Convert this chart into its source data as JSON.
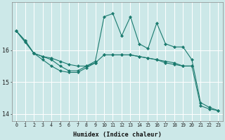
{
  "xlabel": "Humidex (Indice chaleur)",
  "x": [
    0,
    1,
    2,
    3,
    4,
    5,
    6,
    7,
    8,
    9,
    10,
    11,
    12,
    13,
    14,
    15,
    16,
    17,
    18,
    19,
    20,
    21,
    22,
    23
  ],
  "line_top": [
    16.6,
    16.3,
    15.9,
    null,
    null,
    null,
    null,
    null,
    null,
    null,
    null,
    null,
    null,
    null,
    null,
    null,
    null,
    null,
    null,
    null,
    null,
    null,
    null,
    null
  ],
  "line_mid_flat": [
    16.6,
    16.25,
    15.9,
    15.8,
    15.75,
    15.65,
    15.55,
    15.5,
    15.5,
    15.6,
    15.85,
    15.85,
    15.85,
    15.85,
    15.8,
    15.75,
    15.7,
    15.65,
    15.6,
    15.5,
    15.5,
    null,
    null,
    null
  ],
  "line_zigzag": [
    16.6,
    16.3,
    15.9,
    15.8,
    15.7,
    15.5,
    15.35,
    15.35,
    15.5,
    15.65,
    17.05,
    17.15,
    16.45,
    17.05,
    16.2,
    16.05,
    16.85,
    16.2,
    16.1,
    16.1,
    15.7,
    14.35,
    14.2,
    14.1
  ],
  "line_bottom": [
    null,
    null,
    15.9,
    15.7,
    15.5,
    15.35,
    15.3,
    15.3,
    15.45,
    15.6,
    null,
    null,
    null,
    null,
    null,
    null,
    null,
    null,
    null,
    null,
    null,
    null,
    null,
    null
  ],
  "line_long_decline": [
    null,
    null,
    null,
    null,
    null,
    null,
    null,
    null,
    null,
    null,
    15.85,
    15.85,
    15.85,
    15.85,
    15.8,
    15.75,
    15.7,
    15.6,
    15.55,
    15.5,
    15.5,
    14.25,
    14.15,
    14.1
  ],
  "ylim": [
    13.78,
    17.5
  ],
  "yticks": [
    14,
    15,
    16
  ],
  "xticks": [
    0,
    1,
    2,
    3,
    4,
    5,
    6,
    7,
    8,
    9,
    10,
    11,
    12,
    13,
    14,
    15,
    16,
    17,
    18,
    19,
    20,
    21,
    22,
    23
  ],
  "color": "#1a7a6e",
  "bg_color": "#cce8e8",
  "grid_color": "#ffffff",
  "markersize": 2.2,
  "linewidth": 0.8
}
